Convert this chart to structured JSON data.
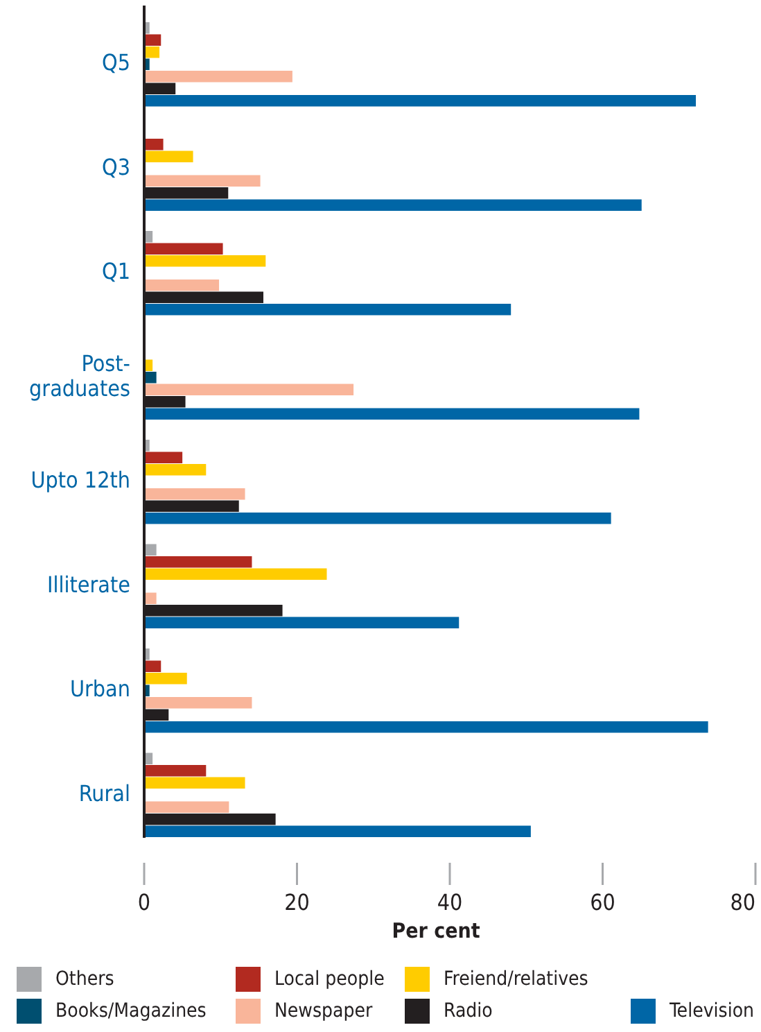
{
  "chart_data": {
    "type": "bar",
    "orientation": "horizontal",
    "xlabel": "Per cent",
    "categories": [
      "Q5",
      "Q3",
      "Q1",
      "Post-graduates",
      "Upto 12th",
      "Illiterate",
      "Urban",
      "Rural"
    ],
    "xlim": [
      0,
      80
    ],
    "xticks": [
      0,
      20,
      40,
      60,
      80
    ],
    "grid": false,
    "legend": "bottom",
    "series": [
      {
        "name": "Others",
        "color": "#a7a9ac",
        "values": [
          0.7,
          null,
          1.1,
          null,
          0.7,
          1.6,
          0.7,
          1.1
        ]
      },
      {
        "name": "Local people",
        "color": "#b22a20",
        "values": [
          2.2,
          2.5,
          10.3,
          null,
          5.0,
          14.1,
          2.2,
          8.1
        ]
      },
      {
        "name": "Freiend/relatives",
        "color": "#ffcc00",
        "values": [
          2.0,
          6.4,
          15.9,
          1.1,
          8.1,
          23.9,
          5.6,
          13.2
        ]
      },
      {
        "name": "Books/Magazines",
        "color": "#004f70",
        "values": [
          0.7,
          null,
          null,
          1.6,
          null,
          null,
          0.7,
          null
        ]
      },
      {
        "name": "Newspaper",
        "color": "#f9b59a",
        "values": [
          19.4,
          15.2,
          9.8,
          27.4,
          13.2,
          1.6,
          14.1,
          11.1
        ]
      },
      {
        "name": "Radio",
        "color": "#231f20",
        "values": [
          4.1,
          11.0,
          15.6,
          5.4,
          12.4,
          18.1,
          3.2,
          17.2
        ]
      },
      {
        "name": "Television",
        "color": "#0066a6",
        "values": [
          72.2,
          65.1,
          48.0,
          64.8,
          61.1,
          41.2,
          73.8,
          50.6
        ]
      }
    ]
  }
}
